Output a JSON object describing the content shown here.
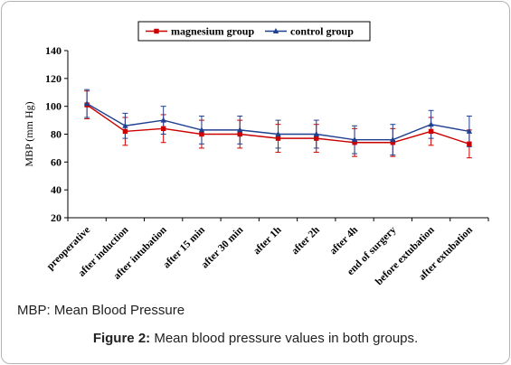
{
  "chart_data": {
    "type": "line",
    "ylabel": "MBP (mm Hg)",
    "ylim": [
      20,
      140
    ],
    "yticks": [
      20,
      40,
      60,
      80,
      100,
      120,
      140
    ],
    "grid": false,
    "legend_placement": "top-center",
    "categories": [
      "preoperative",
      "after induction",
      "after intubation",
      "after 15 min",
      "after 30 min",
      "after 1h",
      "after 2h",
      "after 4h",
      "end of surgery",
      "before extubation",
      "after extubation"
    ],
    "series": [
      {
        "name": "magnesium group",
        "color": "#cc0000",
        "marker": "square",
        "values": [
          101,
          82,
          84,
          80,
          80,
          77,
          77,
          74,
          74,
          82,
          73
        ],
        "error": [
          10,
          10,
          10,
          10,
          10,
          10,
          10,
          10,
          10,
          10,
          10
        ]
      },
      {
        "name": "control group",
        "color": "#1f3f8f",
        "marker": "triangle",
        "values": [
          102,
          86,
          90,
          83,
          83,
          80,
          80,
          76,
          76,
          87,
          82
        ],
        "error": [
          10,
          9,
          10,
          10,
          10,
          10,
          10,
          10,
          11,
          10,
          11
        ]
      }
    ]
  },
  "note": "MBP: Mean Blood Pressure",
  "caption": {
    "label": "Figure 2:",
    "text": "Mean blood pressure values in both groups."
  }
}
